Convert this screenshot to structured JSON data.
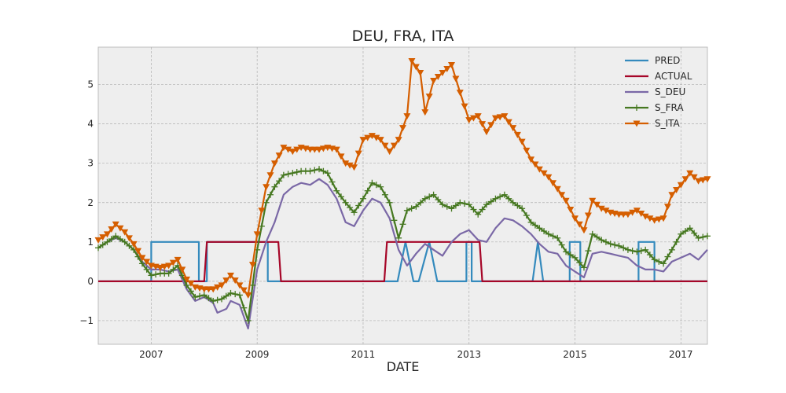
{
  "chart_data": {
    "type": "line",
    "title": "DEU, FRA, ITA",
    "xlabel": "DATE",
    "ylabel": "",
    "xlim": [
      2006.0,
      2017.5
    ],
    "ylim": [
      -1.6,
      5.95
    ],
    "x_ticks": [
      2007,
      2009,
      2011,
      2013,
      2015,
      2017
    ],
    "x_tick_labels": [
      "2007",
      "2009",
      "2011",
      "2013",
      "2015",
      "2017"
    ],
    "y_ticks": [
      -1,
      0,
      1,
      2,
      3,
      4,
      5
    ],
    "y_tick_labels": [
      "−1",
      "0",
      "1",
      "2",
      "3",
      "4",
      "5"
    ],
    "grid": true,
    "legend_position": "top-right",
    "colors": {
      "PRED": "#348ABD",
      "ACTUAL": "#A60628",
      "S_DEU": "#7A68A6",
      "S_FRA": "#467821",
      "S_ITA": "#D55E00",
      "plot_background": "#EEEEEE",
      "grid": "#B0B0B0"
    },
    "series": [
      {
        "name": "PRED",
        "marker": "none",
        "points": [
          [
            2006.0,
            0
          ],
          [
            2007.0,
            0
          ],
          [
            2007.0,
            1
          ],
          [
            2007.9,
            1
          ],
          [
            2007.9,
            0
          ],
          [
            2008.05,
            0
          ],
          [
            2008.05,
            1
          ],
          [
            2009.2,
            1
          ],
          [
            2009.2,
            0
          ],
          [
            2011.65,
            0
          ],
          [
            2011.8,
            1
          ],
          [
            2011.95,
            0
          ],
          [
            2012.05,
            0
          ],
          [
            2012.25,
            1
          ],
          [
            2012.4,
            0
          ],
          [
            2012.95,
            0
          ],
          [
            2012.95,
            1
          ],
          [
            2013.05,
            1
          ],
          [
            2013.05,
            0
          ],
          [
            2014.2,
            0
          ],
          [
            2014.3,
            1
          ],
          [
            2014.4,
            0
          ],
          [
            2014.9,
            0
          ],
          [
            2014.9,
            1
          ],
          [
            2015.1,
            1
          ],
          [
            2015.1,
            0
          ],
          [
            2016.2,
            0
          ],
          [
            2016.2,
            1
          ],
          [
            2016.5,
            1
          ],
          [
            2016.5,
            0
          ],
          [
            2017.5,
            0
          ]
        ]
      },
      {
        "name": "ACTUAL",
        "marker": "none",
        "points": [
          [
            2006.0,
            0
          ],
          [
            2008.0,
            0
          ],
          [
            2008.05,
            1
          ],
          [
            2009.4,
            1
          ],
          [
            2009.45,
            0
          ],
          [
            2011.4,
            0
          ],
          [
            2011.45,
            1
          ],
          [
            2013.2,
            1
          ],
          [
            2013.25,
            0
          ],
          [
            2017.5,
            0
          ]
        ]
      },
      {
        "name": "S_DEU",
        "marker": "none",
        "points": [
          [
            2006.0,
            0.85
          ],
          [
            2006.17,
            1.0
          ],
          [
            2006.33,
            1.1
          ],
          [
            2006.5,
            1.0
          ],
          [
            2006.67,
            0.8
          ],
          [
            2006.83,
            0.5
          ],
          [
            2007.0,
            0.3
          ],
          [
            2007.17,
            0.3
          ],
          [
            2007.33,
            0.25
          ],
          [
            2007.5,
            0.3
          ],
          [
            2007.67,
            -0.2
          ],
          [
            2007.83,
            -0.5
          ],
          [
            2008.0,
            -0.4
          ],
          [
            2008.17,
            -0.55
          ],
          [
            2008.25,
            -0.8
          ],
          [
            2008.42,
            -0.7
          ],
          [
            2008.5,
            -0.5
          ],
          [
            2008.67,
            -0.6
          ],
          [
            2008.83,
            -1.2
          ],
          [
            2009.0,
            0.3
          ],
          [
            2009.17,
            1.0
          ],
          [
            2009.33,
            1.5
          ],
          [
            2009.5,
            2.2
          ],
          [
            2009.67,
            2.4
          ],
          [
            2009.83,
            2.5
          ],
          [
            2010.0,
            2.45
          ],
          [
            2010.17,
            2.6
          ],
          [
            2010.33,
            2.45
          ],
          [
            2010.5,
            2.1
          ],
          [
            2010.67,
            1.5
          ],
          [
            2010.83,
            1.4
          ],
          [
            2011.0,
            1.8
          ],
          [
            2011.17,
            2.1
          ],
          [
            2011.33,
            2.0
          ],
          [
            2011.5,
            1.6
          ],
          [
            2011.67,
            0.8
          ],
          [
            2011.83,
            0.4
          ],
          [
            2012.0,
            0.7
          ],
          [
            2012.17,
            0.95
          ],
          [
            2012.33,
            0.8
          ],
          [
            2012.5,
            0.65
          ],
          [
            2012.67,
            1.0
          ],
          [
            2012.83,
            1.2
          ],
          [
            2013.0,
            1.3
          ],
          [
            2013.17,
            1.05
          ],
          [
            2013.33,
            1.0
          ],
          [
            2013.5,
            1.35
          ],
          [
            2013.67,
            1.6
          ],
          [
            2013.83,
            1.55
          ],
          [
            2014.0,
            1.4
          ],
          [
            2014.17,
            1.2
          ],
          [
            2014.33,
            0.95
          ],
          [
            2014.5,
            0.75
          ],
          [
            2014.67,
            0.7
          ],
          [
            2014.83,
            0.4
          ],
          [
            2015.0,
            0.25
          ],
          [
            2015.17,
            0.1
          ],
          [
            2015.33,
            0.7
          ],
          [
            2015.5,
            0.75
          ],
          [
            2015.67,
            0.7
          ],
          [
            2015.83,
            0.65
          ],
          [
            2016.0,
            0.6
          ],
          [
            2016.17,
            0.4
          ],
          [
            2016.33,
            0.3
          ],
          [
            2016.5,
            0.3
          ],
          [
            2016.67,
            0.25
          ],
          [
            2016.83,
            0.5
          ],
          [
            2017.0,
            0.6
          ],
          [
            2017.17,
            0.7
          ],
          [
            2017.33,
            0.55
          ],
          [
            2017.5,
            0.8
          ]
        ]
      },
      {
        "name": "S_FRA",
        "marker": "plus",
        "points": [
          [
            2006.0,
            0.85
          ],
          [
            2006.17,
            1.0
          ],
          [
            2006.33,
            1.15
          ],
          [
            2006.5,
            1.0
          ],
          [
            2006.67,
            0.8
          ],
          [
            2006.83,
            0.45
          ],
          [
            2007.0,
            0.15
          ],
          [
            2007.17,
            0.2
          ],
          [
            2007.33,
            0.2
          ],
          [
            2007.5,
            0.4
          ],
          [
            2007.67,
            -0.1
          ],
          [
            2007.83,
            -0.4
          ],
          [
            2008.0,
            -0.35
          ],
          [
            2008.17,
            -0.5
          ],
          [
            2008.33,
            -0.45
          ],
          [
            2008.5,
            -0.3
          ],
          [
            2008.67,
            -0.35
          ],
          [
            2008.83,
            -1.0
          ],
          [
            2009.0,
            0.8
          ],
          [
            2009.17,
            2.0
          ],
          [
            2009.33,
            2.4
          ],
          [
            2009.5,
            2.7
          ],
          [
            2009.67,
            2.75
          ],
          [
            2009.83,
            2.8
          ],
          [
            2010.0,
            2.8
          ],
          [
            2010.17,
            2.85
          ],
          [
            2010.33,
            2.75
          ],
          [
            2010.5,
            2.3
          ],
          [
            2010.67,
            2.0
          ],
          [
            2010.83,
            1.75
          ],
          [
            2011.0,
            2.1
          ],
          [
            2011.17,
            2.5
          ],
          [
            2011.33,
            2.4
          ],
          [
            2011.5,
            2.0
          ],
          [
            2011.67,
            1.1
          ],
          [
            2011.83,
            1.8
          ],
          [
            2012.0,
            1.9
          ],
          [
            2012.17,
            2.1
          ],
          [
            2012.33,
            2.2
          ],
          [
            2012.5,
            1.95
          ],
          [
            2012.67,
            1.85
          ],
          [
            2012.83,
            2.0
          ],
          [
            2013.0,
            1.95
          ],
          [
            2013.17,
            1.7
          ],
          [
            2013.33,
            1.95
          ],
          [
            2013.5,
            2.1
          ],
          [
            2013.67,
            2.2
          ],
          [
            2013.83,
            2.0
          ],
          [
            2014.0,
            1.85
          ],
          [
            2014.17,
            1.5
          ],
          [
            2014.33,
            1.35
          ],
          [
            2014.5,
            1.2
          ],
          [
            2014.67,
            1.1
          ],
          [
            2014.83,
            0.75
          ],
          [
            2015.0,
            0.6
          ],
          [
            2015.17,
            0.35
          ],
          [
            2015.33,
            1.2
          ],
          [
            2015.5,
            1.05
          ],
          [
            2015.67,
            0.95
          ],
          [
            2015.83,
            0.9
          ],
          [
            2016.0,
            0.8
          ],
          [
            2016.17,
            0.75
          ],
          [
            2016.33,
            0.8
          ],
          [
            2016.5,
            0.55
          ],
          [
            2016.67,
            0.45
          ],
          [
            2016.83,
            0.8
          ],
          [
            2017.0,
            1.2
          ],
          [
            2017.17,
            1.35
          ],
          [
            2017.33,
            1.1
          ],
          [
            2017.5,
            1.15
          ]
        ]
      },
      {
        "name": "S_ITA",
        "marker": "triangle_down",
        "points": [
          [
            2006.0,
            1.05
          ],
          [
            2006.17,
            1.2
          ],
          [
            2006.33,
            1.45
          ],
          [
            2006.5,
            1.25
          ],
          [
            2006.67,
            0.95
          ],
          [
            2006.83,
            0.6
          ],
          [
            2007.0,
            0.4
          ],
          [
            2007.17,
            0.35
          ],
          [
            2007.33,
            0.4
          ],
          [
            2007.5,
            0.55
          ],
          [
            2007.67,
            0.05
          ],
          [
            2007.83,
            -0.15
          ],
          [
            2008.0,
            -0.2
          ],
          [
            2008.17,
            -0.2
          ],
          [
            2008.33,
            -0.1
          ],
          [
            2008.5,
            0.15
          ],
          [
            2008.67,
            -0.1
          ],
          [
            2008.83,
            -0.35
          ],
          [
            2009.0,
            1.2
          ],
          [
            2009.17,
            2.4
          ],
          [
            2009.33,
            3.0
          ],
          [
            2009.5,
            3.4
          ],
          [
            2009.67,
            3.3
          ],
          [
            2009.83,
            3.4
          ],
          [
            2010.0,
            3.35
          ],
          [
            2010.17,
            3.35
          ],
          [
            2010.33,
            3.4
          ],
          [
            2010.5,
            3.35
          ],
          [
            2010.67,
            3.0
          ],
          [
            2010.83,
            2.9
          ],
          [
            2011.0,
            3.6
          ],
          [
            2011.17,
            3.7
          ],
          [
            2011.33,
            3.6
          ],
          [
            2011.5,
            3.3
          ],
          [
            2011.67,
            3.6
          ],
          [
            2011.83,
            4.2
          ],
          [
            2011.92,
            5.6
          ],
          [
            2012.08,
            5.3
          ],
          [
            2012.17,
            4.3
          ],
          [
            2012.33,
            5.1
          ],
          [
            2012.5,
            5.3
          ],
          [
            2012.67,
            5.5
          ],
          [
            2012.83,
            4.8
          ],
          [
            2013.0,
            4.1
          ],
          [
            2013.17,
            4.2
          ],
          [
            2013.33,
            3.8
          ],
          [
            2013.5,
            4.15
          ],
          [
            2013.67,
            4.2
          ],
          [
            2013.83,
            3.9
          ],
          [
            2014.0,
            3.55
          ],
          [
            2014.17,
            3.1
          ],
          [
            2014.33,
            2.85
          ],
          [
            2014.5,
            2.65
          ],
          [
            2014.67,
            2.35
          ],
          [
            2014.83,
            2.05
          ],
          [
            2015.0,
            1.6
          ],
          [
            2015.17,
            1.3
          ],
          [
            2015.33,
            2.05
          ],
          [
            2015.5,
            1.85
          ],
          [
            2015.67,
            1.75
          ],
          [
            2015.83,
            1.7
          ],
          [
            2016.0,
            1.7
          ],
          [
            2016.17,
            1.8
          ],
          [
            2016.33,
            1.65
          ],
          [
            2016.5,
            1.55
          ],
          [
            2016.67,
            1.6
          ],
          [
            2016.83,
            2.2
          ],
          [
            2017.0,
            2.45
          ],
          [
            2017.17,
            2.75
          ],
          [
            2017.33,
            2.55
          ],
          [
            2017.5,
            2.6
          ]
        ]
      }
    ]
  }
}
